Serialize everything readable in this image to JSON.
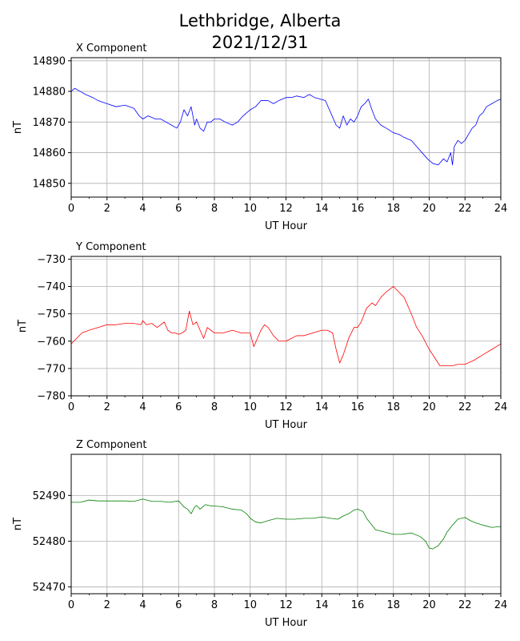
{
  "figure": {
    "title_line1": "Lethbridge, Alberta",
    "title_line2": "2021/12/31"
  },
  "chart_data": [
    {
      "type": "line",
      "title": "X Component",
      "xlabel": "UT Hour",
      "ylabel": "nT",
      "xlim": [
        0,
        24
      ],
      "ylim": [
        14845.5,
        14891
      ],
      "xticks": [
        0,
        2,
        4,
        6,
        8,
        10,
        12,
        14,
        16,
        18,
        20,
        22,
        24
      ],
      "yticks": [
        14850,
        14860,
        14870,
        14880,
        14890
      ],
      "grid": true,
      "color": "#0000ff",
      "series": [
        {
          "x": [
            0,
            0.2,
            0.5,
            0.8,
            1.2,
            1.5,
            2.0,
            2.5,
            3.0,
            3.5,
            3.8,
            4.0,
            4.3,
            4.7,
            5.0,
            5.3,
            5.6,
            5.9,
            6.1,
            6.3,
            6.5,
            6.7,
            6.9,
            7.0,
            7.2,
            7.4,
            7.6,
            7.8,
            8.0,
            8.3,
            8.6,
            9.0,
            9.3,
            9.6,
            10.0,
            10.3,
            10.6,
            11.0,
            11.3,
            11.6,
            12.0,
            12.3,
            12.6,
            13.0,
            13.3,
            13.6,
            13.9,
            14.2,
            14.5,
            14.8,
            15.0,
            15.2,
            15.4,
            15.6,
            15.8,
            16.0,
            16.2,
            16.4,
            16.6,
            16.8,
            17.0,
            17.3,
            17.6,
            18.0,
            18.3,
            18.6,
            19.0,
            19.3,
            19.6,
            19.9,
            20.2,
            20.5,
            20.8,
            21.0,
            21.2,
            21.3,
            21.4,
            21.6,
            21.8,
            22.0,
            22.2,
            22.4,
            22.6,
            22.8,
            23.0,
            23.2,
            23.5,
            23.8,
            24.0
          ],
          "y": [
            14880,
            14881,
            14880,
            14879,
            14878,
            14877,
            14876,
            14875,
            14875.5,
            14874.5,
            14872,
            14871,
            14872,
            14871,
            14871,
            14870,
            14869,
            14868,
            14870,
            14874,
            14872,
            14875,
            14869,
            14871,
            14868,
            14867,
            14870,
            14870,
            14871,
            14871,
            14870,
            14869,
            14870,
            14872,
            14874,
            14875,
            14877,
            14877,
            14876,
            14877,
            14878,
            14878,
            14878.5,
            14878,
            14879,
            14878,
            14877.5,
            14877,
            14873,
            14869,
            14868,
            14872,
            14869,
            14871,
            14870,
            14872,
            14875,
            14876,
            14877.5,
            14874,
            14871,
            14869,
            14868,
            14866.5,
            14866,
            14865,
            14864,
            14862,
            14860,
            14858,
            14856.5,
            14856,
            14858,
            14857,
            14860,
            14856,
            14862,
            14864,
            14863,
            14864,
            14866,
            14868,
            14869,
            14872,
            14873,
            14875,
            14876,
            14877,
            14877.5
          ]
        }
      ]
    },
    {
      "type": "line",
      "title": "Y Component",
      "xlabel": "UT Hour",
      "ylabel": "nT",
      "xlim": [
        0,
        24
      ],
      "ylim": [
        -780,
        -729
      ],
      "xticks": [
        0,
        2,
        4,
        6,
        8,
        10,
        12,
        14,
        16,
        18,
        20,
        22,
        24
      ],
      "yticks": [
        -780,
        -770,
        -760,
        -750,
        -740,
        -730
      ],
      "ytick_labels": [
        "−780",
        "−770",
        "−760",
        "−750",
        "−740",
        "−730"
      ],
      "grid": true,
      "color": "#ff0000",
      "series": [
        {
          "x": [
            0,
            0.3,
            0.6,
            1.0,
            1.5,
            2.0,
            2.5,
            3.0,
            3.5,
            3.9,
            4.0,
            4.2,
            4.5,
            4.8,
            5.0,
            5.2,
            5.4,
            5.6,
            5.8,
            6.0,
            6.2,
            6.4,
            6.6,
            6.8,
            7.0,
            7.2,
            7.4,
            7.6,
            7.8,
            8.0,
            8.5,
            9.0,
            9.5,
            10.0,
            10.2,
            10.4,
            10.6,
            10.8,
            11.0,
            11.3,
            11.6,
            12.0,
            12.3,
            12.6,
            13.0,
            13.5,
            14.0,
            14.3,
            14.6,
            14.8,
            15.0,
            15.2,
            15.5,
            15.8,
            16.0,
            16.2,
            16.5,
            16.8,
            17.0,
            17.3,
            17.6,
            18.0,
            18.3,
            18.6,
            19.0,
            19.3,
            19.6,
            20.0,
            20.3,
            20.6,
            21.0,
            21.3,
            21.6,
            22.0,
            22.5,
            23.0,
            23.5,
            24.0
          ],
          "y": [
            -761,
            -759,
            -757,
            -756,
            -755,
            -754,
            -754,
            -753.5,
            -753.5,
            -754,
            -752.5,
            -754,
            -753.5,
            -755,
            -754,
            -753,
            -756,
            -757,
            -757,
            -757.5,
            -757,
            -756,
            -749,
            -754,
            -753,
            -756,
            -759,
            -755,
            -756,
            -757,
            -757,
            -756,
            -757,
            -757,
            -762,
            -759,
            -756,
            -754,
            -755,
            -758,
            -760,
            -760,
            -759,
            -758,
            -758,
            -757,
            -756,
            -756,
            -757,
            -763,
            -768,
            -765,
            -759,
            -755,
            -755,
            -753,
            -748,
            -746,
            -747,
            -744,
            -742,
            -740,
            -742,
            -744,
            -750,
            -755,
            -758,
            -763,
            -766,
            -769,
            -769,
            -769,
            -768.5,
            -768.5,
            -767,
            -765,
            -763,
            -761
          ]
        }
      ]
    },
    {
      "type": "line",
      "title": "Z Component",
      "xlabel": "UT Hour",
      "ylabel": "nT",
      "xlim": [
        0,
        24
      ],
      "ylim": [
        52468.5,
        52499
      ],
      "xticks": [
        0,
        2,
        4,
        6,
        8,
        10,
        12,
        14,
        16,
        18,
        20,
        22,
        24
      ],
      "yticks": [
        52470,
        52480,
        52490
      ],
      "grid": true,
      "color": "#008000",
      "series": [
        {
          "x": [
            0,
            0.5,
            1.0,
            1.5,
            2.0,
            2.5,
            3.0,
            3.5,
            4.0,
            4.5,
            5.0,
            5.5,
            6.0,
            6.3,
            6.5,
            6.7,
            6.9,
            7.0,
            7.2,
            7.5,
            7.8,
            8.0,
            8.5,
            9.0,
            9.5,
            9.8,
            10.0,
            10.3,
            10.6,
            11.0,
            11.5,
            12.0,
            12.5,
            13.0,
            13.5,
            14.0,
            14.5,
            14.9,
            15.2,
            15.5,
            15.8,
            16.0,
            16.3,
            16.5,
            16.8,
            17.0,
            17.5,
            18.0,
            18.5,
            19.0,
            19.5,
            19.8,
            20.0,
            20.2,
            20.5,
            20.8,
            21.0,
            21.3,
            21.6,
            22.0,
            22.3,
            22.6,
            23.0,
            23.5,
            24.0
          ],
          "y": [
            52488.5,
            52488.5,
            52489,
            52488.8,
            52488.8,
            52488.8,
            52488.8,
            52488.7,
            52489.2,
            52488.7,
            52488.7,
            52488.5,
            52488.8,
            52487.5,
            52487,
            52486,
            52487.5,
            52487.8,
            52487,
            52488,
            52487.7,
            52487.7,
            52487.5,
            52487,
            52486.8,
            52486,
            52485,
            52484.2,
            52484,
            52484.5,
            52485,
            52484.8,
            52484.8,
            52485,
            52485,
            52485.3,
            52485,
            52484.8,
            52485.5,
            52486,
            52486.8,
            52487,
            52486.5,
            52485,
            52483.5,
            52482.5,
            52482,
            52481.5,
            52481.5,
            52481.8,
            52481,
            52480,
            52478.5,
            52478.3,
            52479,
            52480.5,
            52482,
            52483.5,
            52484.8,
            52485.2,
            52484.5,
            52484,
            52483.5,
            52483,
            52483.2
          ]
        }
      ]
    }
  ]
}
